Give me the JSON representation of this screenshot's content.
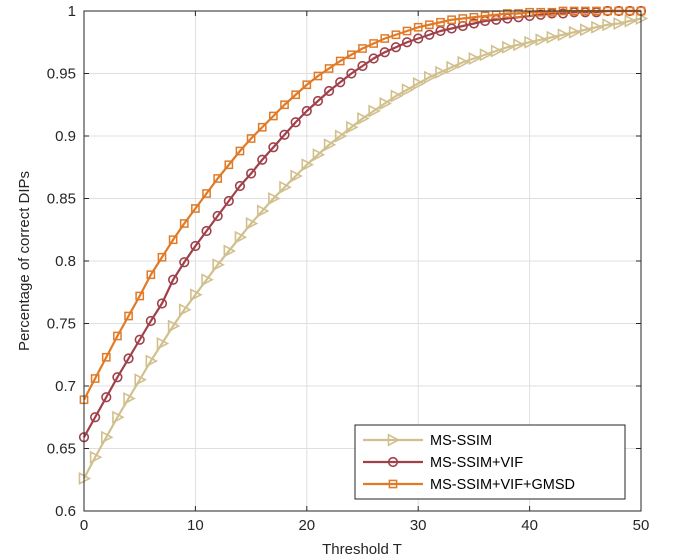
{
  "chart_data": {
    "type": "line",
    "xlabel": "Threshold T",
    "ylabel": "Percentage of correct DIPs",
    "xlim": [
      0,
      50
    ],
    "ylim": [
      0.6,
      1.0
    ],
    "xticks": [
      "0",
      "10",
      "20",
      "30",
      "40",
      "50"
    ],
    "yticks": [
      "0.6",
      "0.65",
      "0.7",
      "0.75",
      "0.8",
      "0.85",
      "0.9",
      "0.95",
      "1"
    ],
    "grid": true,
    "legend_position": "bottom-right",
    "x": [
      0,
      1,
      2,
      3,
      4,
      5,
      6,
      7,
      8,
      9,
      10,
      11,
      12,
      13,
      14,
      15,
      16,
      17,
      18,
      19,
      20,
      21,
      22,
      23,
      24,
      25,
      26,
      27,
      28,
      29,
      30,
      31,
      32,
      33,
      34,
      35,
      36,
      37,
      38,
      39,
      40,
      41,
      42,
      43,
      44,
      45,
      46,
      47,
      48,
      49,
      50
    ],
    "series": [
      {
        "name": "MS-SSIM",
        "color": "#d1c08e",
        "marker": "triangle-right",
        "values": [
          0.626,
          0.643,
          0.659,
          0.675,
          0.69,
          0.705,
          0.72,
          0.734,
          0.748,
          0.761,
          0.773,
          0.785,
          0.797,
          0.808,
          0.819,
          0.83,
          0.84,
          0.85,
          0.859,
          0.868,
          0.877,
          0.885,
          0.893,
          0.9,
          0.907,
          0.914,
          0.92,
          0.926,
          0.932,
          0.937,
          0.942,
          0.947,
          0.951,
          0.955,
          0.959,
          0.962,
          0.965,
          0.968,
          0.971,
          0.973,
          0.975,
          0.977,
          0.979,
          0.981,
          0.983,
          0.985,
          0.987,
          0.989,
          0.99,
          0.992,
          0.994
        ]
      },
      {
        "name": "MS-SSIM+VIF",
        "color": "#a0414a",
        "marker": "circle",
        "values": [
          0.659,
          0.675,
          0.691,
          0.707,
          0.722,
          0.737,
          0.752,
          0.766,
          0.785,
          0.799,
          0.812,
          0.824,
          0.836,
          0.848,
          0.86,
          0.87,
          0.881,
          0.891,
          0.901,
          0.911,
          0.92,
          0.928,
          0.936,
          0.943,
          0.95,
          0.956,
          0.962,
          0.967,
          0.971,
          0.975,
          0.978,
          0.981,
          0.984,
          0.986,
          0.988,
          0.99,
          0.992,
          0.993,
          0.994,
          0.995,
          0.996,
          0.997,
          0.998,
          0.998,
          0.999,
          0.999,
          0.999,
          1.0,
          1.0,
          1.0,
          1.0
        ]
      },
      {
        "name": "MS-SSIM+VIF+GMSD",
        "color": "#e07a27",
        "marker": "square",
        "values": [
          0.689,
          0.706,
          0.723,
          0.74,
          0.756,
          0.772,
          0.789,
          0.803,
          0.817,
          0.83,
          0.842,
          0.854,
          0.866,
          0.877,
          0.888,
          0.898,
          0.907,
          0.916,
          0.925,
          0.933,
          0.941,
          0.948,
          0.954,
          0.96,
          0.965,
          0.97,
          0.974,
          0.978,
          0.981,
          0.984,
          0.987,
          0.989,
          0.991,
          0.993,
          0.994,
          0.995,
          0.996,
          0.997,
          0.998,
          0.998,
          0.999,
          0.999,
          0.999,
          1.0,
          1.0,
          1.0,
          1.0,
          1.0,
          1.0,
          1.0,
          1.0
        ]
      }
    ]
  }
}
